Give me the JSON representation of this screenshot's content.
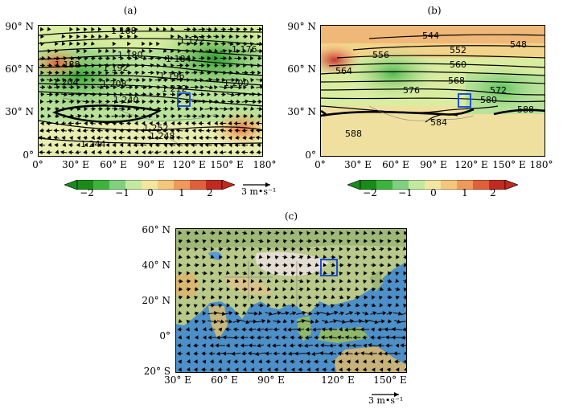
{
  "panels": {
    "a": {
      "label": "(a)",
      "lat_labels": [
        "90° N",
        "60° N",
        "30° N",
        "0°"
      ],
      "lon_labels": [
        "0°",
        "30° E",
        "60° E",
        "90° E",
        "120° E",
        "150° E",
        "180°"
      ],
      "contour_labels": [
        "1 168",
        "1 172",
        "1 176",
        "1 180",
        "1 184",
        "1 188",
        "1 192",
        "1 196",
        "1 200",
        "1 204",
        "1 208",
        "1 212",
        "1 240",
        "1 252",
        "1 248",
        "1 244"
      ],
      "vector_unit": "3 m•s⁻¹"
    },
    "b": {
      "label": "(b)",
      "lat_labels": [
        "90° N",
        "60° N",
        "30° N",
        "0°"
      ],
      "lon_labels": [
        "0°",
        "30° E",
        "60° E",
        "90° E",
        "120° E",
        "150° E",
        "180°"
      ],
      "contour_labels": [
        "544",
        "548",
        "552",
        "556",
        "560",
        "564",
        "568",
        "572",
        "576",
        "580",
        "584",
        "588",
        "588"
      ]
    },
    "c": {
      "label": "(c)",
      "lat_labels": [
        "60° N",
        "40° N",
        "20° N",
        "0°",
        "20° S"
      ],
      "lon_labels": [
        "30° E",
        "60° E",
        "90° E",
        "120° E",
        "150° E"
      ],
      "vector_unit": "3 m•s⁻¹"
    }
  },
  "colorbar": {
    "ticks": [
      "−2",
      "−1",
      "0",
      "1",
      "2"
    ],
    "colors": [
      "#1a8a1a",
      "#3cb43c",
      "#7fd07f",
      "#c5e8a0",
      "#f2e6a0",
      "#f5c77a",
      "#ef9a5a",
      "#e0603a",
      "#c02a20"
    ]
  },
  "colors": {
    "box": "#1f4fd8",
    "vector": "#000000"
  }
}
